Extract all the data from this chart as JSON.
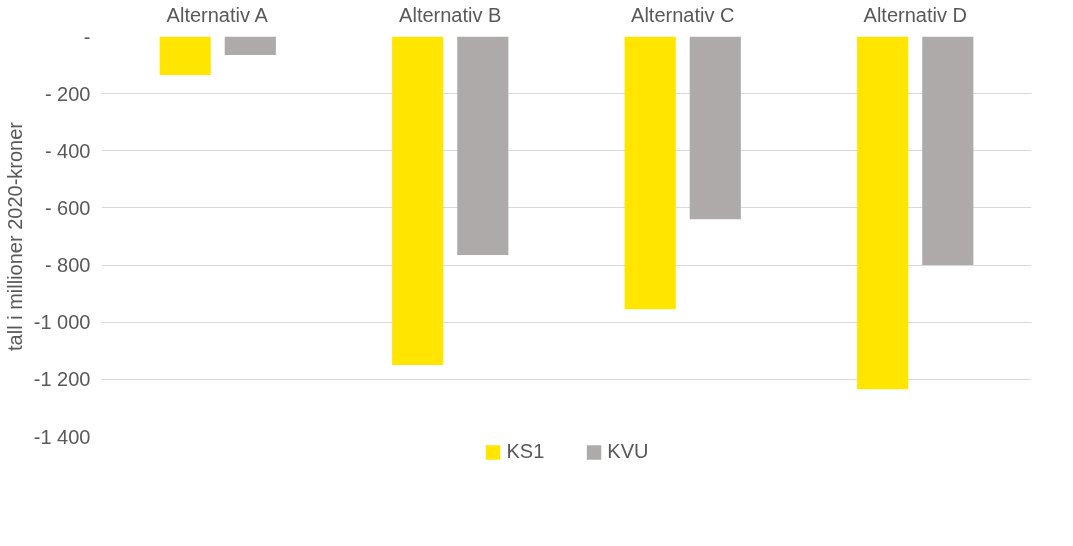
{
  "chart_data": {
    "type": "bar",
    "ylabel": "tall i millioner 2020-kroner",
    "categories": [
      "Alternativ A",
      "Alternativ B",
      "Alternativ C",
      "Alternativ D"
    ],
    "series": [
      {
        "name": "KS1",
        "color": "#ffe500",
        "values": [
          -135,
          -1150,
          -955,
          -1235
        ]
      },
      {
        "name": "KVU",
        "color": "#aeaaaa",
        "values": [
          -65,
          -765,
          -640,
          -800
        ]
      }
    ],
    "ylim": [
      -1400,
      0
    ],
    "yticks": [
      {
        "value": 0,
        "label": "-"
      },
      {
        "value": -200,
        "label": "- 200"
      },
      {
        "value": -400,
        "label": "- 400"
      },
      {
        "value": -600,
        "label": "- 600"
      },
      {
        "value": -800,
        "label": "- 800"
      },
      {
        "value": -1000,
        "label": "-1 000"
      },
      {
        "value": -1200,
        "label": "-1 200"
      },
      {
        "value": -1400,
        "label": "-1 400"
      }
    ],
    "grid": "y",
    "legend": "bottom"
  }
}
